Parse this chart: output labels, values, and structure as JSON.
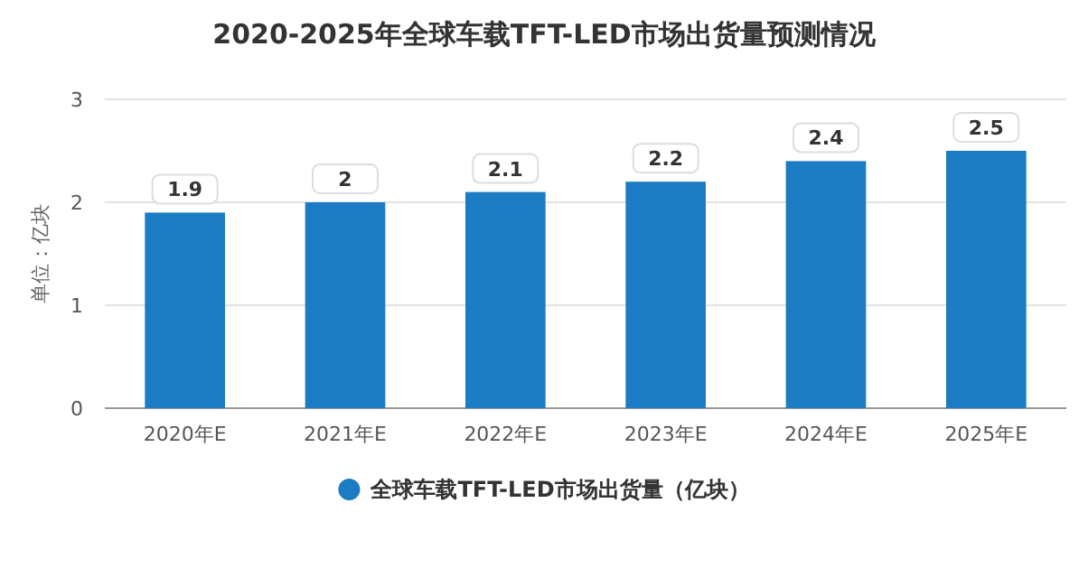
{
  "chart_data": {
    "type": "bar",
    "title": "2020-2025年全球车载TFT-LED市场出货量预测情况",
    "ylabel": "单位：亿块",
    "categories": [
      "2020年E",
      "2021年E",
      "2022年E",
      "2023年E",
      "2024年E",
      "2025年E"
    ],
    "series": [
      {
        "name": "全球车载TFT-LED市场出货量（亿块）",
        "color": "#1b7cc3",
        "values": [
          1.9,
          2,
          2.1,
          2.2,
          2.4,
          2.5
        ]
      }
    ],
    "ylim": [
      0,
      3
    ],
    "yticks": [
      0,
      1,
      2,
      3
    ],
    "grid": "y",
    "legend": "bottom",
    "data_labels": true
  }
}
